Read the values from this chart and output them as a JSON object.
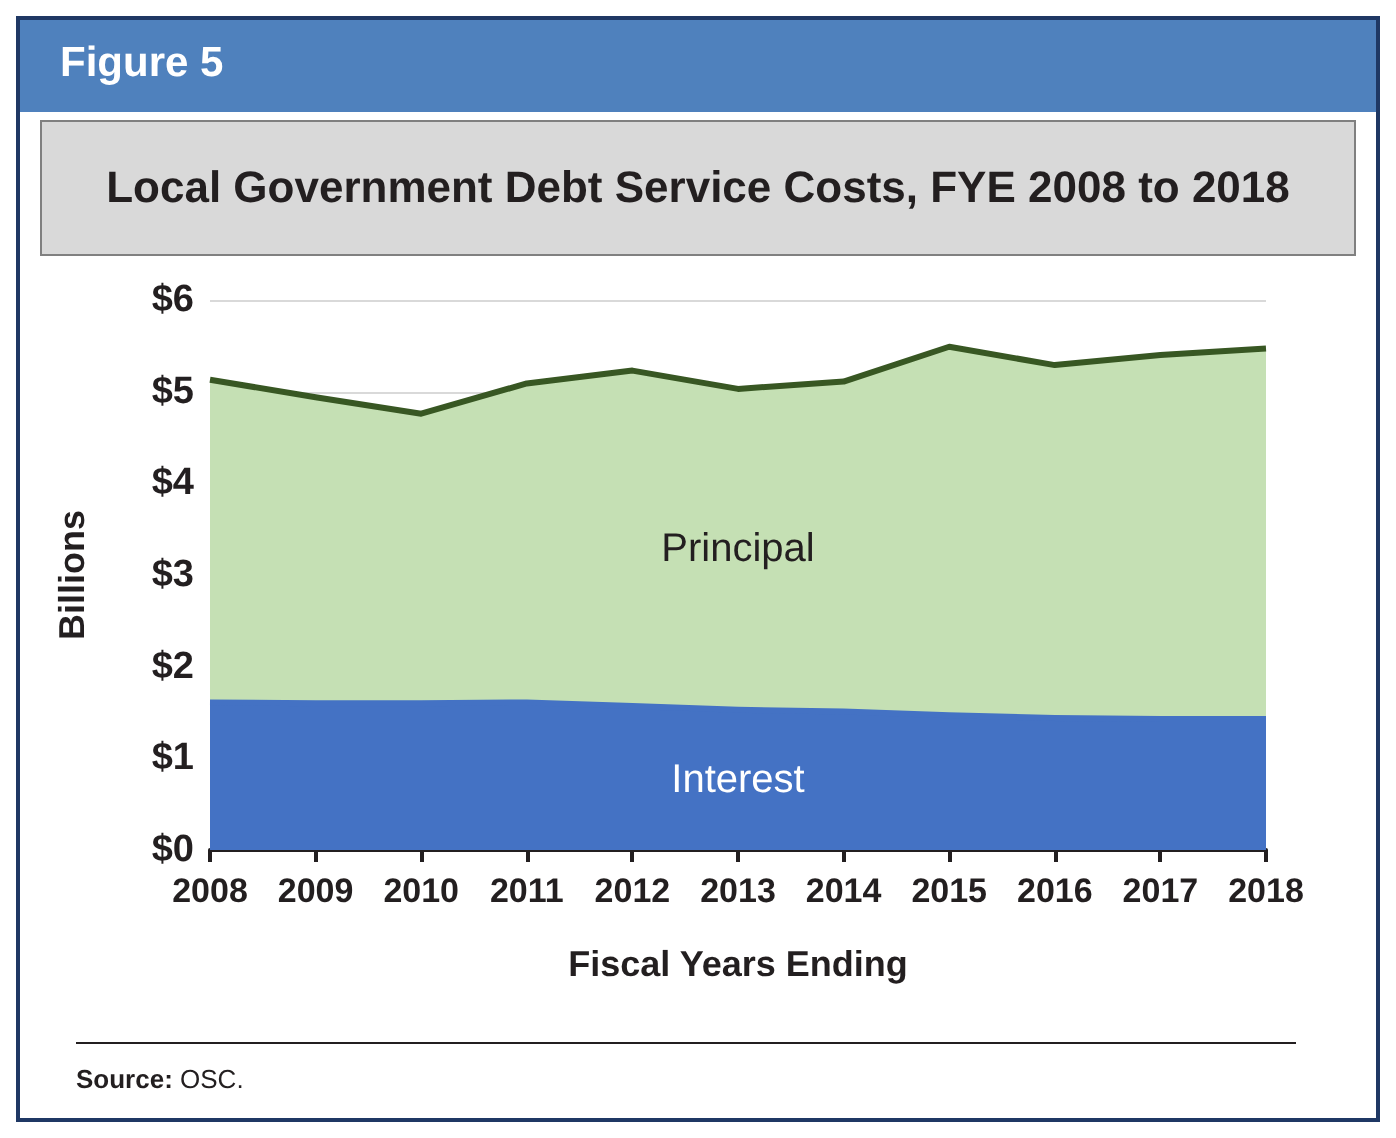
{
  "chart_data": {
    "type": "area",
    "stacked": true,
    "subtitle": "Figure 5",
    "title": "Local Government Debt Service Costs, FYE 2008 to 2018",
    "xlabel": "Fiscal Years Ending",
    "ylabel": "Billions",
    "categories": [
      "2008",
      "2009",
      "2010",
      "2011",
      "2012",
      "2013",
      "2014",
      "2015",
      "2016",
      "2017",
      "2018"
    ],
    "series": [
      {
        "name": "Interest",
        "color": "#4472c4",
        "values": [
          1.61,
          1.6,
          1.6,
          1.61,
          1.57,
          1.53,
          1.51,
          1.47,
          1.44,
          1.43,
          1.43
        ]
      },
      {
        "name": "Principal",
        "color": "#c5e0b4",
        "values": [
          3.52,
          3.34,
          3.16,
          3.48,
          3.66,
          3.5,
          3.6,
          4.02,
          3.85,
          3.97,
          4.04
        ]
      }
    ],
    "ylim": [
      0,
      6
    ],
    "yticks": [
      {
        "value": 0,
        "label": "$0"
      },
      {
        "value": 1,
        "label": "$1"
      },
      {
        "value": 2,
        "label": "$2"
      },
      {
        "value": 3,
        "label": "$3"
      },
      {
        "value": 4,
        "label": "$4"
      },
      {
        "value": 5,
        "label": "$5"
      },
      {
        "value": 6,
        "label": "$6"
      }
    ],
    "grid": "y",
    "legend": false,
    "annotations": [
      "Source: OSC."
    ]
  }
}
